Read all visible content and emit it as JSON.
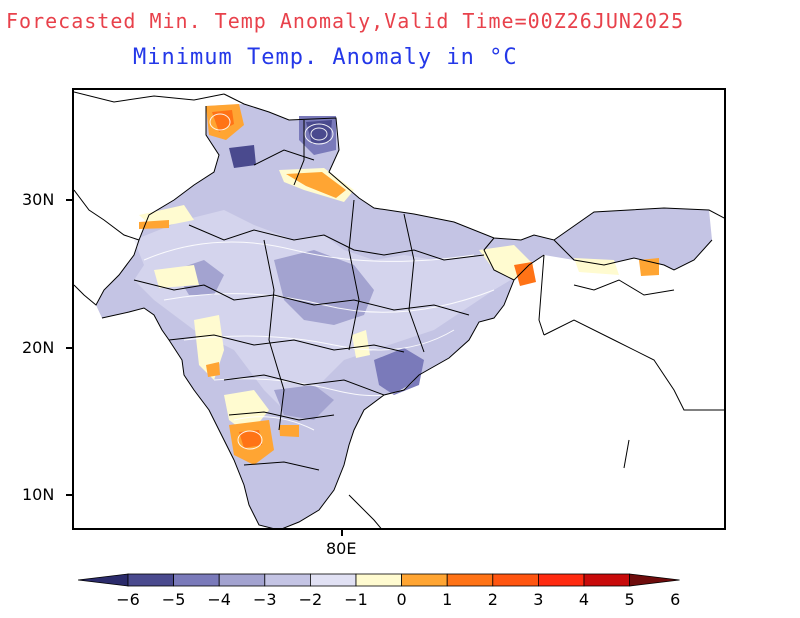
{
  "title": "Forecasted Min. Temp Anomaly,Valid Time=00Z26JUN2025",
  "subtitle": "Minimum Temp. Anomaly in °C",
  "axes": {
    "lat_labels": [
      "30N",
      "20N",
      "10N"
    ],
    "lon_labels": [
      "80E"
    ]
  },
  "colorbar": {
    "labels": [
      "−6",
      "−5",
      "−4",
      "−3",
      "−2",
      "−1",
      "0",
      "1",
      "2",
      "3",
      "4",
      "5",
      "6"
    ],
    "colors": [
      "#2b2b6b",
      "#4a4a8e",
      "#7a7aba",
      "#a3a3d0",
      "#c4c4e4",
      "#e1e1f4",
      "#fffbd0",
      "#ffa533",
      "#ff7316",
      "#ff5510",
      "#ff2a10",
      "#c80a0a",
      "#6e0c0c"
    ]
  }
}
